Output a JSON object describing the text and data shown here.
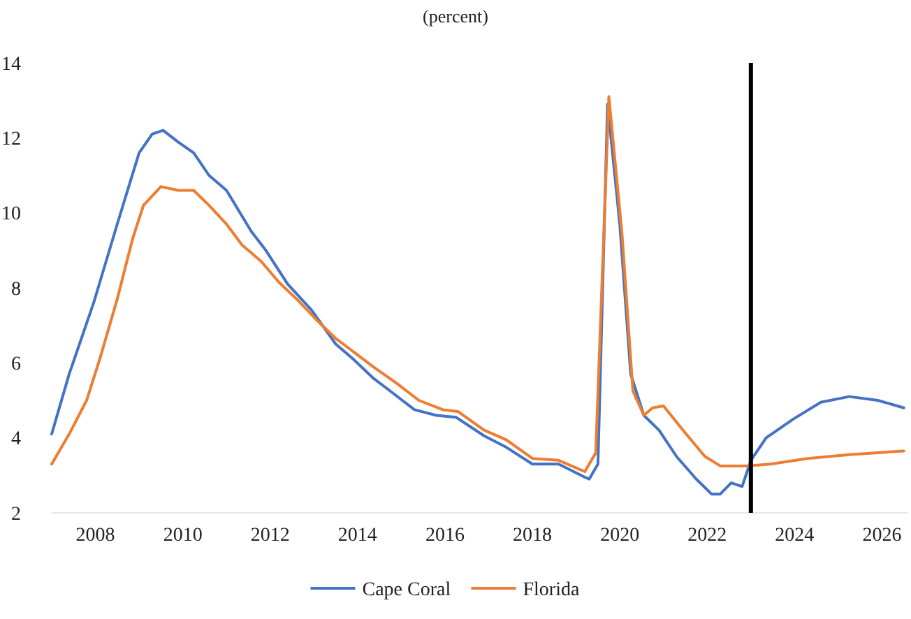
{
  "chart_data": {
    "type": "line",
    "title": "(percent)",
    "xlim": [
      2007,
      2026.6
    ],
    "xticks": [
      2008,
      2010,
      2012,
      2014,
      2016,
      2018,
      2020,
      2022,
      2024,
      2026
    ],
    "ylim": [
      2,
      14
    ],
    "yticks": [
      2,
      4,
      6,
      8,
      10,
      12,
      14
    ],
    "grid": false,
    "legend": "bottom",
    "marker": "none",
    "line_style": "solid",
    "ref_lines": [
      {
        "axis": "x",
        "value": 2023,
        "color": "#000000"
      }
    ],
    "series": [
      {
        "name": "Cape Coral",
        "color": "#4472c4",
        "x": [
          2007,
          2007.4,
          2007.96,
          2008.5,
          2009,
          2009.3,
          2009.55,
          2009.88,
          2010.25,
          2010.6,
          2011,
          2011.57,
          2011.9,
          2012.4,
          2012.95,
          2013.5,
          2013.9,
          2014.35,
          2014.8,
          2015.3,
          2015.8,
          2016.25,
          2016.9,
          2017.4,
          2018,
          2018.6,
          2019.2,
          2019.3,
          2019.5,
          2019.72,
          2020,
          2020.25,
          2020.55,
          2020.9,
          2021.3,
          2021.75,
          2022.1,
          2022.3,
          2022.55,
          2022.8,
          2023,
          2023.35,
          2023.97,
          2024.6,
          2025.25,
          2025.9,
          2026.5
        ],
        "values": [
          4.1,
          5.7,
          7.6,
          9.7,
          11.6,
          12.1,
          12.2,
          11.9,
          11.6,
          11,
          10.6,
          9.5,
          9,
          8.1,
          7.4,
          6.5,
          6.1,
          5.6,
          5.2,
          4.75,
          4.6,
          4.55,
          4.05,
          3.75,
          3.3,
          3.3,
          2.95,
          2.9,
          3.3,
          12.9,
          9.7,
          5.7,
          4.6,
          4.2,
          3.5,
          2.9,
          2.5,
          2.5,
          2.8,
          2.7,
          3.4,
          4,
          4.5,
          4.95,
          5.1,
          5,
          4.8
        ]
      },
      {
        "name": "Florida",
        "color": "#ed7d31",
        "x": [
          2007,
          2007.4,
          2007.8,
          2008.1,
          2008.5,
          2008.85,
          2009.1,
          2009.5,
          2009.9,
          2010.25,
          2010.6,
          2011,
          2011.35,
          2011.8,
          2012.2,
          2012.65,
          2013.1,
          2013.5,
          2013.9,
          2014.35,
          2014.9,
          2015.4,
          2015.95,
          2016.3,
          2016.9,
          2017.4,
          2018,
          2018.6,
          2019.2,
          2019.45,
          2019.75,
          2020.05,
          2020.3,
          2020.55,
          2020.75,
          2021,
          2021.45,
          2021.95,
          2022.3,
          2022.9,
          2023.45,
          2024.3,
          2025.25,
          2026.5
        ],
        "values": [
          3.3,
          4.1,
          5,
          6.1,
          7.7,
          9.3,
          10.2,
          10.7,
          10.6,
          10.6,
          10.2,
          9.7,
          9.15,
          8.7,
          8.15,
          7.65,
          7.1,
          6.65,
          6.3,
          5.9,
          5.45,
          5,
          4.75,
          4.7,
          4.2,
          3.95,
          3.45,
          3.4,
          3.1,
          3.6,
          13.1,
          9.45,
          5.25,
          4.6,
          4.8,
          4.85,
          4.2,
          3.5,
          3.25,
          3.25,
          3.3,
          3.45,
          3.55,
          3.65
        ]
      }
    ]
  }
}
